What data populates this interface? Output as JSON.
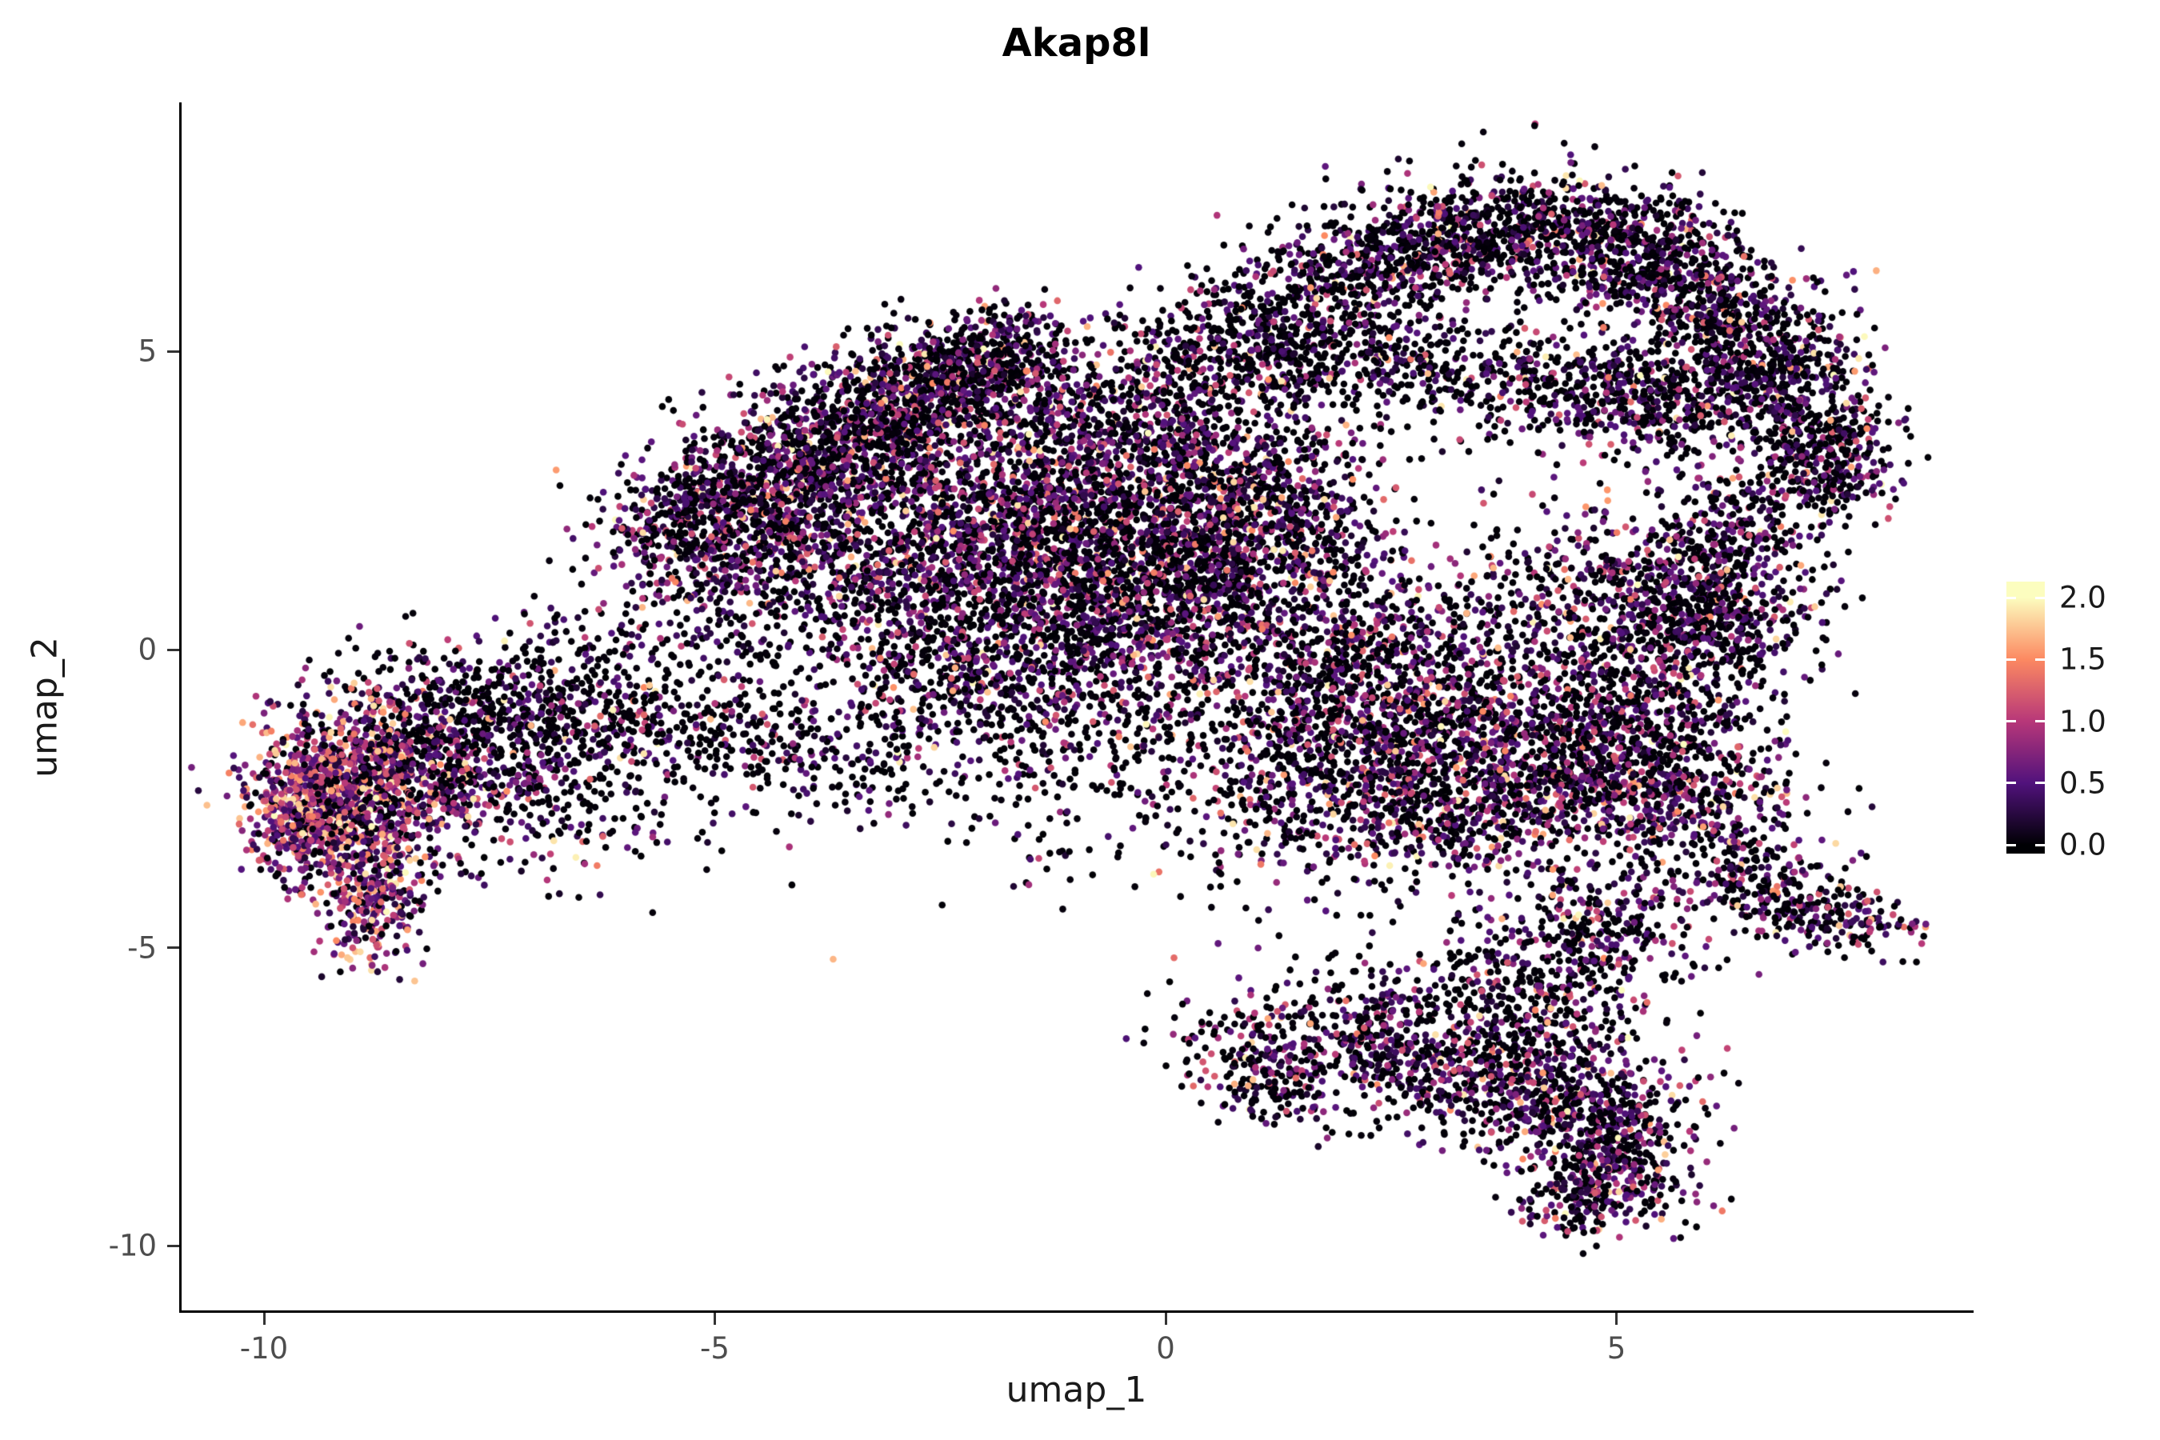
{
  "page": {
    "background": "#ffffff"
  },
  "chart_data": {
    "type": "scatter",
    "title": "Akap8l",
    "xlabel": "umap_1",
    "ylabel": "umap_2",
    "xlim": [
      -10.9,
      8.9
    ],
    "ylim": [
      -11.1,
      9.0
    ],
    "x_ticks": [
      -10,
      -5,
      0,
      5
    ],
    "x_tick_labels": [
      "-10",
      "-5",
      "0",
      "5"
    ],
    "y_ticks": [
      5,
      0,
      -5,
      -10
    ],
    "y_tick_labels": [
      "5",
      "0",
      "-5",
      "-10"
    ],
    "grid": false,
    "axis_color": "#000000",
    "tick_label_color": "#4d4d4d",
    "legend": {
      "type": "colorbar",
      "position": "right",
      "ticks": [
        "2.0",
        "1.5",
        "1.0",
        "0.5",
        "0.0"
      ],
      "tick_values": [
        2.0,
        1.5,
        1.0,
        0.5,
        0.0
      ],
      "range": [
        -0.07,
        2.13
      ]
    },
    "colormap": {
      "name": "magma",
      "vmax": 2.0,
      "stops": [
        {
          "t": 0.0,
          "c": "#000004"
        },
        {
          "t": 0.25,
          "c": "#51127c"
        },
        {
          "t": 0.5,
          "c": "#b73779"
        },
        {
          "t": 0.75,
          "c": "#fc8961"
        },
        {
          "t": 1.0,
          "c": "#fcfdbf"
        }
      ]
    },
    "point_radius": 4.3,
    "seed": 42,
    "expression_bins": [
      [
        0,
        0.04
      ],
      [
        0.15,
        0.65
      ],
      [
        0.65,
        1.25
      ],
      [
        1.25,
        2.0
      ]
    ],
    "expression_profiles": {
      "high": [
        0.18,
        0.3,
        0.32,
        0.2
      ],
      "mid": [
        0.5,
        0.3,
        0.15,
        0.05
      ],
      "lowmid": [
        0.58,
        0.28,
        0.11,
        0.03
      ],
      "low": [
        0.68,
        0.24,
        0.06,
        0.02
      ]
    },
    "clusters": [
      [
        -9.0,
        -2.4,
        0.55,
        0.75,
        0,
        850,
        "high"
      ],
      [
        -9.55,
        -2.7,
        0.33,
        0.55,
        0,
        380,
        "high"
      ],
      [
        -8.8,
        -4.3,
        0.28,
        0.55,
        0,
        250,
        "high"
      ],
      [
        -8.1,
        -1.8,
        0.7,
        0.75,
        0,
        520,
        "mid"
      ],
      [
        -7.0,
        -2.2,
        1.0,
        0.85,
        0,
        400,
        "lowmid"
      ],
      [
        -7.3,
        -0.8,
        0.9,
        0.5,
        -15,
        300,
        "low"
      ],
      [
        -5.9,
        -0.5,
        0.85,
        0.75,
        0,
        230,
        "low"
      ],
      [
        -4.8,
        -1.4,
        0.85,
        0.65,
        0,
        200,
        "low"
      ],
      [
        -3.6,
        -1.7,
        0.9,
        0.6,
        0,
        150,
        "low"
      ],
      [
        -5.1,
        2.2,
        0.6,
        0.5,
        35,
        420,
        "mid"
      ],
      [
        -4.3,
        2.9,
        0.65,
        0.55,
        35,
        520,
        "mid"
      ],
      [
        -3.4,
        3.7,
        0.7,
        0.55,
        35,
        580,
        "mid"
      ],
      [
        -2.6,
        4.4,
        0.6,
        0.5,
        30,
        480,
        "mid"
      ],
      [
        -1.9,
        4.9,
        0.5,
        0.42,
        20,
        340,
        "mid"
      ],
      [
        -4.4,
        1.4,
        0.8,
        0.65,
        30,
        380,
        "mid"
      ],
      [
        -2.9,
        1.7,
        1.0,
        0.9,
        0,
        780,
        "mid"
      ],
      [
        -1.5,
        2.5,
        0.9,
        0.8,
        0,
        730,
        "mid"
      ],
      [
        -0.2,
        2.0,
        1.0,
        0.9,
        0,
        780,
        "mid"
      ],
      [
        -1.3,
        0.7,
        1.0,
        0.8,
        0,
        640,
        "mid"
      ],
      [
        0.9,
        2.7,
        0.8,
        0.8,
        0,
        580,
        "mid"
      ],
      [
        0.3,
        0.7,
        0.9,
        0.8,
        0,
        540,
        "mid"
      ],
      [
        -0.6,
        3.9,
        0.8,
        0.6,
        0,
        430,
        "mid"
      ],
      [
        0.4,
        4.7,
        0.6,
        0.5,
        0,
        240,
        "lowmid"
      ],
      [
        -1.0,
        -0.7,
        0.9,
        0.7,
        0,
        340,
        "lowmid"
      ],
      [
        -2.4,
        -0.2,
        0.8,
        0.6,
        0,
        290,
        "lowmid"
      ],
      [
        -1.1,
        -2.1,
        1.2,
        0.8,
        0,
        170,
        "low"
      ],
      [
        0.4,
        -3.6,
        1.3,
        0.8,
        0,
        90,
        "low"
      ],
      [
        2.2,
        -0.3,
        1.0,
        0.9,
        0,
        680,
        "mid"
      ],
      [
        3.4,
        -1.4,
        1.0,
        0.9,
        0,
        730,
        "mid"
      ],
      [
        4.5,
        -2.3,
        0.8,
        0.7,
        0,
        540,
        "mid"
      ],
      [
        2.8,
        -2.7,
        0.8,
        0.7,
        0,
        440,
        "mid"
      ],
      [
        1.5,
        -1.8,
        0.8,
        0.7,
        0,
        390,
        "lowmid"
      ],
      [
        5.3,
        -1.2,
        0.7,
        0.8,
        0,
        440,
        "mid"
      ],
      [
        5.9,
        -2.5,
        0.6,
        0.6,
        0,
        300,
        "mid"
      ],
      [
        6.6,
        -3.9,
        0.55,
        0.4,
        -35,
        220,
        "mid"
      ],
      [
        7.4,
        -4.5,
        0.45,
        0.28,
        -20,
        150,
        "mid"
      ],
      [
        4.7,
        0.9,
        0.9,
        0.8,
        0,
        480,
        "mid"
      ],
      [
        5.8,
        0.2,
        0.7,
        0.7,
        0,
        340,
        "lowmid"
      ],
      [
        1.3,
        1.5,
        0.9,
        0.9,
        0,
        260,
        "low"
      ],
      [
        0.9,
        5.5,
        0.5,
        0.45,
        0,
        170,
        "low"
      ],
      [
        1.9,
        6.2,
        0.6,
        0.5,
        25,
        330,
        "lowmid"
      ],
      [
        3.0,
        6.8,
        0.7,
        0.5,
        10,
        430,
        "lowmid"
      ],
      [
        4.2,
        7.0,
        0.7,
        0.5,
        0,
        480,
        "lowmid"
      ],
      [
        5.3,
        6.6,
        0.6,
        0.5,
        -25,
        430,
        "lowmid"
      ],
      [
        6.1,
        5.8,
        0.5,
        0.5,
        -45,
        380,
        "lowmid"
      ],
      [
        6.7,
        4.8,
        0.45,
        0.5,
        -70,
        340,
        "lowmid"
      ],
      [
        7.1,
        3.7,
        0.4,
        0.5,
        -80,
        270,
        "lowmid"
      ],
      [
        7.3,
        2.9,
        0.38,
        0.42,
        -80,
        190,
        "lowmid"
      ],
      [
        2.4,
        4.9,
        0.55,
        0.45,
        0,
        200,
        "low"
      ],
      [
        3.6,
        4.5,
        0.6,
        0.45,
        0,
        210,
        "low"
      ],
      [
        4.9,
        4.4,
        0.6,
        0.5,
        0,
        260,
        "lowmid"
      ],
      [
        5.7,
        4.1,
        0.5,
        0.45,
        0,
        240,
        "lowmid"
      ],
      [
        1.4,
        4.9,
        0.5,
        0.5,
        0,
        140,
        "low"
      ],
      [
        6.4,
        2.0,
        0.5,
        0.6,
        0,
        250,
        "lowmid"
      ],
      [
        6.1,
        0.9,
        0.55,
        0.6,
        0,
        250,
        "lowmid"
      ],
      [
        3.0,
        -6.8,
        0.8,
        0.6,
        0,
        430,
        "mid"
      ],
      [
        4.2,
        -7.3,
        0.7,
        0.6,
        0,
        430,
        "mid"
      ],
      [
        4.9,
        -8.0,
        0.5,
        0.5,
        0,
        290,
        "mid"
      ],
      [
        5.0,
        -8.9,
        0.45,
        0.45,
        0,
        230,
        "mid"
      ],
      [
        4.5,
        -9.3,
        0.3,
        0.25,
        0,
        80,
        "mid"
      ],
      [
        4.1,
        -5.6,
        0.6,
        0.6,
        0,
        270,
        "lowmid"
      ],
      [
        4.8,
        -4.7,
        0.6,
        0.5,
        0,
        250,
        "lowmid"
      ],
      [
        2.1,
        -6.2,
        0.5,
        0.5,
        0,
        150,
        "lowmid"
      ],
      [
        0.9,
        -6.7,
        0.45,
        0.45,
        0,
        160,
        "mid"
      ],
      [
        1.3,
        -7.4,
        0.4,
        0.35,
        0,
        100,
        "lowmid"
      ],
      [
        8.2,
        -4.6,
        0.12,
        0.1,
        0,
        5,
        "high"
      ]
    ]
  }
}
